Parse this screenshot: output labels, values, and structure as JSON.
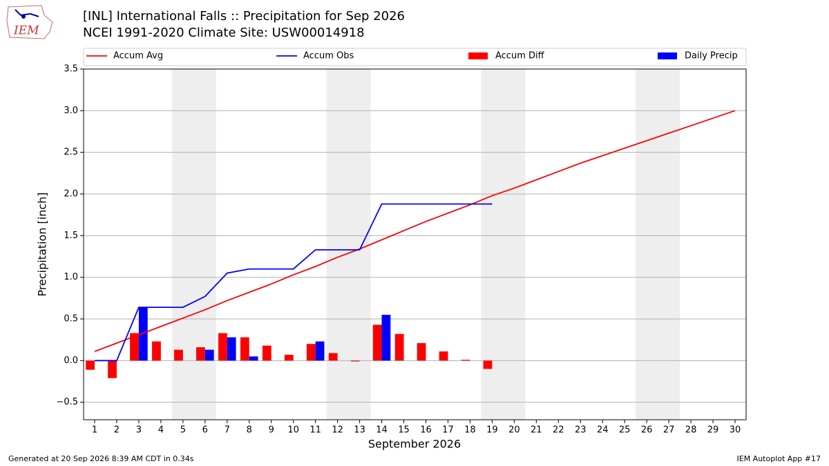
{
  "chart_data": {
    "type": "line",
    "title": "[INL] International Falls :: Precipitation for Sep 2026",
    "subtitle": "NCEI 1991-2020 Climate Site: USW00014918",
    "logo_text": "IEM",
    "xlabel": "September 2026",
    "ylabel": "Precipitation [inch]",
    "footer_left": "Generated at 20 Sep 2026 8:39 AM CDT in 0.34s",
    "footer_right": "IEM Autoplot App #17",
    "x": [
      1,
      2,
      3,
      4,
      5,
      6,
      7,
      8,
      9,
      10,
      11,
      12,
      13,
      14,
      15,
      16,
      17,
      18,
      19,
      20,
      21,
      22,
      23,
      24,
      25,
      26,
      27,
      28,
      29,
      30
    ],
    "xlim": [
      0.5,
      30.5
    ],
    "xticks": [
      1,
      2,
      3,
      4,
      5,
      6,
      7,
      8,
      9,
      10,
      11,
      12,
      13,
      14,
      15,
      16,
      17,
      18,
      19,
      20,
      21,
      22,
      23,
      24,
      25,
      26,
      27,
      28,
      29,
      30
    ],
    "ylim": [
      -0.71,
      3.5
    ],
    "yticks": [
      {
        "value": -0.5,
        "label": "−0.5"
      },
      {
        "value": 0,
        "label": "0.0"
      },
      0.5,
      {
        "value": 1,
        "label": "1.0"
      },
      1.5,
      {
        "value": 2,
        "label": "2.0"
      },
      2.5,
      {
        "value": 3,
        "label": "3.0"
      },
      3.5
    ],
    "grid": true,
    "shaded_spans": [
      [
        4.5,
        6.5
      ],
      [
        11.5,
        13.5
      ],
      [
        18.5,
        20.5
      ],
      [
        25.5,
        27.5
      ]
    ],
    "series": [
      {
        "name": "Accum Avg",
        "color": "#ff0000",
        "kind": "line",
        "values": [
          0.11,
          0.21,
          0.31,
          0.41,
          0.51,
          0.61,
          0.72,
          0.82,
          0.92,
          1.03,
          1.13,
          1.24,
          1.34,
          1.45,
          1.56,
          1.67,
          1.77,
          1.87,
          1.98,
          2.07,
          2.17,
          2.27,
          2.37,
          2.46,
          2.55,
          2.64,
          2.73,
          2.82,
          2.91,
          3.0
        ]
      },
      {
        "name": "Accum Obs",
        "color": "#0000ff",
        "kind": "line",
        "values": [
          0,
          0,
          0.64,
          0.64,
          0.64,
          0.77,
          1.05,
          1.1,
          1.1,
          1.1,
          1.33,
          1.33,
          1.33,
          1.88,
          1.88,
          1.88,
          1.88,
          1.88,
          1.88,
          null,
          null,
          null,
          null,
          null,
          null,
          null,
          null,
          null,
          null,
          null
        ]
      },
      {
        "name": "Accum Diff",
        "color": "#ff0000",
        "kind": "bar",
        "values": [
          -0.11,
          -0.21,
          0.33,
          0.23,
          0.13,
          0.16,
          0.33,
          0.28,
          0.18,
          0.07,
          0.2,
          0.09,
          -0.01,
          0.43,
          0.32,
          0.21,
          0.11,
          0.01,
          -0.1,
          null,
          null,
          null,
          null,
          null,
          null,
          null,
          null,
          null,
          null,
          null
        ]
      },
      {
        "name": "Daily Precip",
        "color": "#0000ff",
        "kind": "bar",
        "values": [
          0,
          0,
          0.64,
          0,
          0,
          0.13,
          0.28,
          0.05,
          0,
          0,
          0.23,
          0,
          0,
          0.55,
          0,
          0,
          0,
          0,
          0,
          null,
          null,
          null,
          null,
          null,
          null,
          null,
          null,
          null,
          null,
          null
        ]
      }
    ]
  }
}
